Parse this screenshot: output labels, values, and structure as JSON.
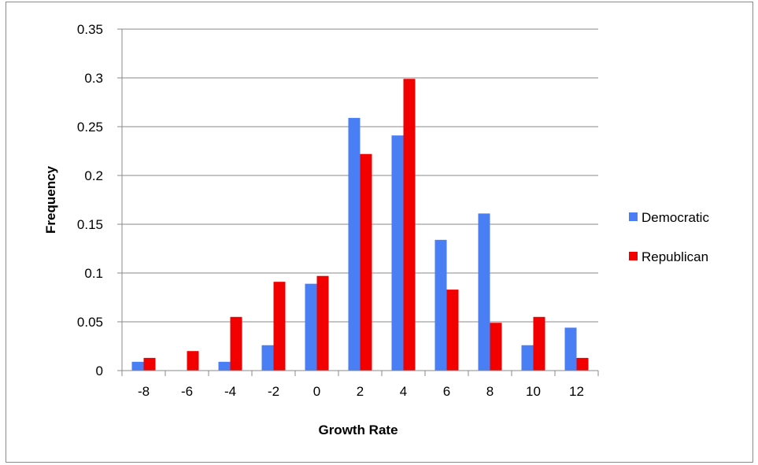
{
  "chart_data": {
    "type": "bar",
    "title": "",
    "xlabel": "Growth Rate",
    "ylabel": "Frequency",
    "categories": [
      "-8",
      "-6",
      "-4",
      "-2",
      "0",
      "2",
      "4",
      "6",
      "8",
      "10",
      "12"
    ],
    "series": [
      {
        "name": "Democratic",
        "color": "#4a7ef5",
        "values": [
          0.009,
          0,
          0.009,
          0.026,
          0.089,
          0.259,
          0.241,
          0.134,
          0.161,
          0.026,
          0.044
        ]
      },
      {
        "name": "Republican",
        "color": "#f20000",
        "values": [
          0.013,
          0.02,
          0.055,
          0.091,
          0.097,
          0.222,
          0.299,
          0.083,
          0.049,
          0.055,
          0.013
        ]
      }
    ],
    "ylim": [
      0,
      0.35
    ],
    "yticks": [
      "0",
      "0.05",
      "0.1",
      "0.15",
      "0.2",
      "0.25",
      "0.3",
      "0.35"
    ],
    "grid": true,
    "legend_position": "right"
  }
}
